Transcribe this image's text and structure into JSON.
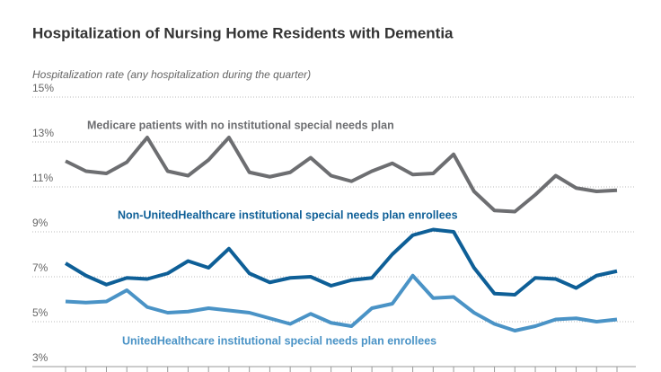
{
  "chart_data": {
    "type": "line",
    "title": "Hospitalization of Nursing Home Residents with Dementia",
    "y_label": "Hospitalization rate (any hospitalization during the quarter)",
    "categories": [
      null,
      null,
      null,
      null,
      null,
      null,
      null,
      null,
      null,
      null,
      null,
      null,
      null,
      null,
      null,
      null,
      null,
      null,
      null,
      null,
      null,
      null,
      null,
      null,
      null,
      null,
      null,
      null
    ],
    "ylim": [
      3,
      15
    ],
    "yticks": [
      {
        "value": 3,
        "label": "3%"
      },
      {
        "value": 5,
        "label": "5%"
      },
      {
        "value": 7,
        "label": "7%"
      },
      {
        "value": 9,
        "label": "9%"
      },
      {
        "value": 11,
        "label": "11%"
      },
      {
        "value": 13,
        "label": "13%"
      },
      {
        "value": 15,
        "label": "15%"
      }
    ],
    "grid": true,
    "series": [
      {
        "name": "Medicare patients with no institutional special needs plan",
        "color": "#6d6e71",
        "values": [
          12.15,
          11.7,
          11.6,
          12.1,
          13.2,
          11.7,
          11.5,
          12.2,
          13.2,
          11.65,
          11.45,
          11.65,
          12.3,
          11.5,
          11.25,
          11.7,
          12.05,
          11.55,
          11.6,
          12.45,
          10.8,
          9.95,
          9.9,
          10.65,
          11.5,
          10.95,
          10.8,
          10.85
        ]
      },
      {
        "name": "Non-UnitedHealthcare institutional special needs plan enrollees",
        "color": "#0e5f97",
        "values": [
          7.6,
          7.05,
          6.65,
          6.95,
          6.9,
          7.15,
          7.7,
          7.4,
          8.25,
          7.15,
          6.75,
          6.95,
          7.0,
          6.6,
          6.85,
          6.95,
          8.0,
          8.85,
          9.1,
          9.0,
          7.4,
          6.25,
          6.2,
          6.95,
          6.9,
          6.5,
          7.05,
          7.25
        ]
      },
      {
        "name": "UnitedHealthcare institutional special needs plan enrollees",
        "color": "#4a93c6",
        "values": [
          5.9,
          5.85,
          5.9,
          6.4,
          5.65,
          5.4,
          5.45,
          5.6,
          5.5,
          5.4,
          5.15,
          4.9,
          5.35,
          4.95,
          4.8,
          5.6,
          5.8,
          7.05,
          6.05,
          6.1,
          5.4,
          4.9,
          4.6,
          4.8,
          5.1,
          5.15,
          5.0,
          5.1
        ]
      }
    ]
  }
}
